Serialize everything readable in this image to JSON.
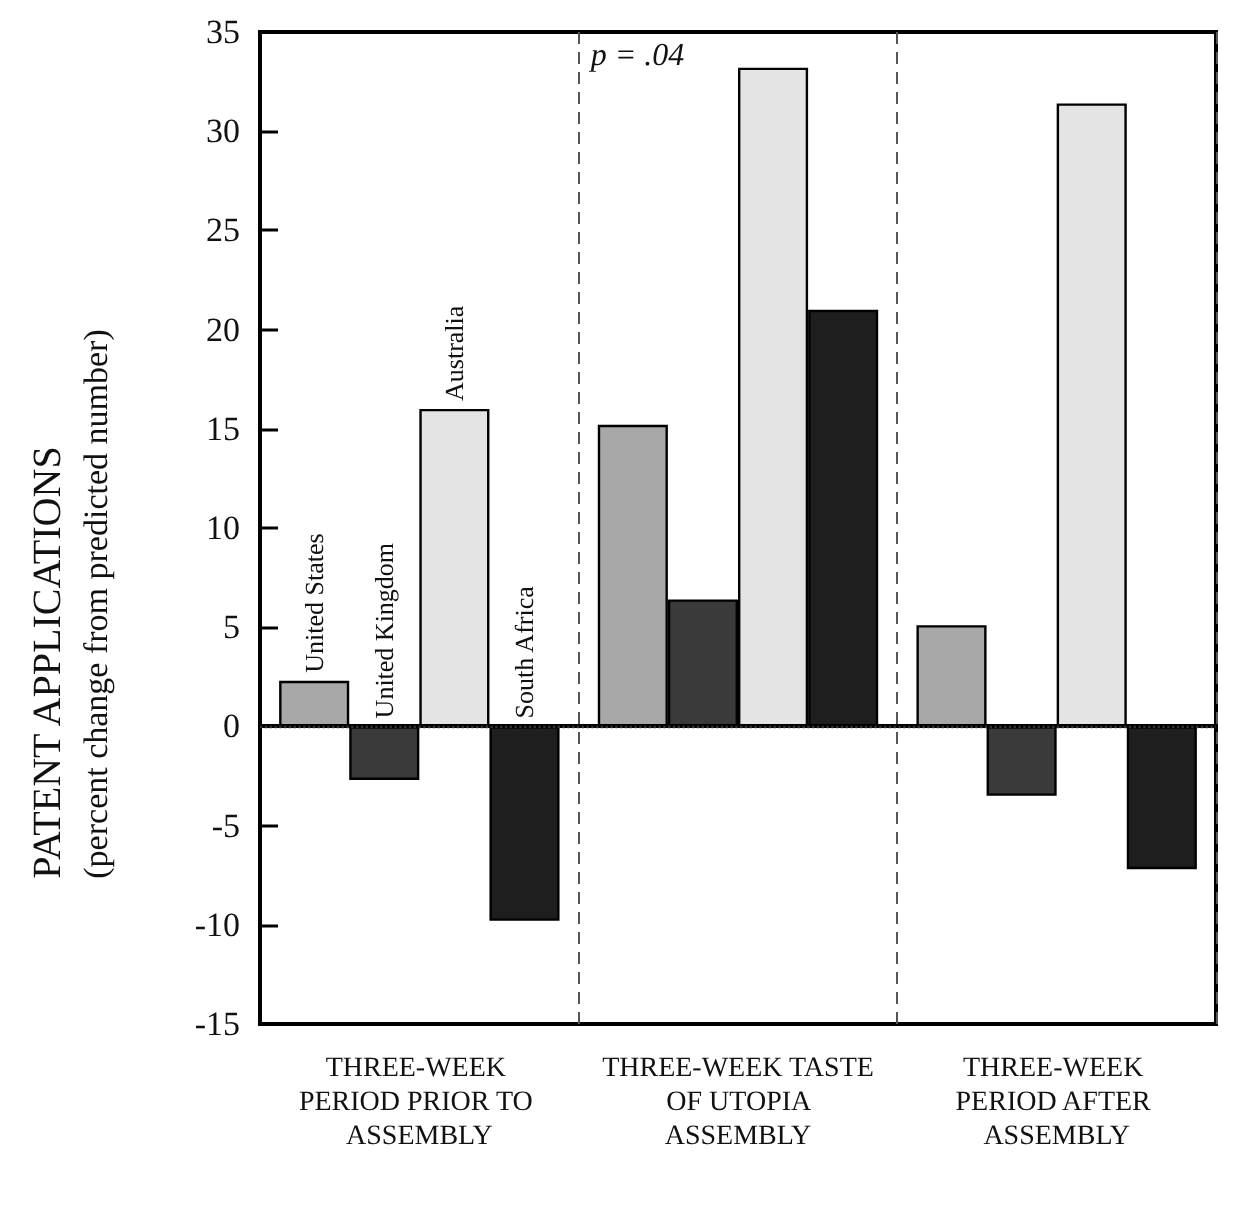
{
  "chart_data": {
    "type": "bar",
    "categories": [
      "THREE-WEEK PERIOD PRIOR TO ASSEMBLY",
      "THREE-WEEK TASTE OF UTOPIA ASSEMBLY",
      "THREE-WEEK PERIOD AFTER ASSEMBLY"
    ],
    "ylabel": "PATENT APPLICATIONS\n(percent change from predicted number)",
    "series": [
      {
        "name": "United States",
        "color": "#a8a8a8",
        "values": [
          2.3,
          15.2,
          5.1
        ]
      },
      {
        "name": "United Kingdom",
        "color": "#3a3a3a",
        "values": [
          -2.7,
          6.4,
          -3.5
        ]
      },
      {
        "name": "Australia",
        "color": "#e4e4e4",
        "values": [
          16,
          33.2,
          31.4
        ]
      },
      {
        "name": "South Africa",
        "color": "#1e1e1e",
        "values": [
          -9.8,
          21,
          -7.2
        ]
      }
    ],
    "ylim": [
      -15,
      35
    ],
    "yticks": [
      -15,
      -10,
      -5,
      0,
      5,
      10,
      15,
      20,
      25,
      30,
      35
    ],
    "grid": "x",
    "legend": false,
    "ref_lines": [
      {
        "axis": "y",
        "value": 0,
        "line_style": "dotted"
      }
    ],
    "annotations": [
      "p = .04"
    ]
  }
}
